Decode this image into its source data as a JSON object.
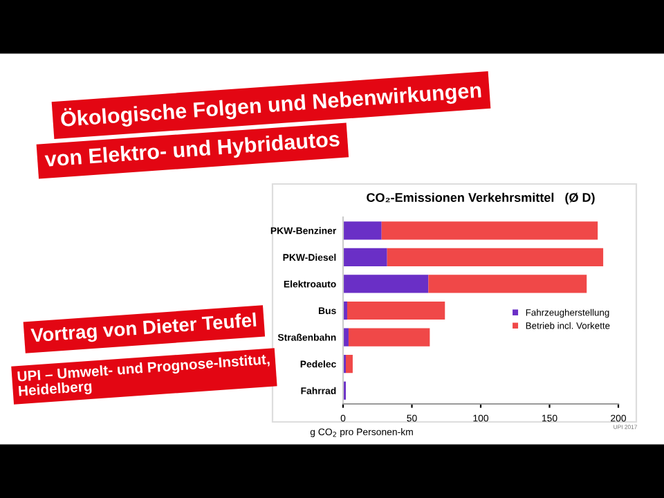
{
  "chart_data": {
    "type": "bar",
    "orientation": "horizontal",
    "stacked": true,
    "title": "CO₂-Emissionen Verkehrsmittel   (Ø D)",
    "xlabel": "g CO$_{2}$ pro Personen-km",
    "categories": [
      "PKW-Benziner",
      "PKW-Diesel",
      "Elektroauto",
      "Bus",
      "Straßenbahn",
      "Pedelec",
      "Fahrrad"
    ],
    "series": [
      {
        "name": "Fahrzeugherstellung",
        "color": "#6a2fc6",
        "values": [
          28,
          32,
          62,
          3,
          4,
          2,
          2
        ]
      },
      {
        "name": "Betrieb incl. Vorkette",
        "color": "#f04848",
        "values": [
          157,
          157,
          115,
          71,
          59,
          5,
          0
        ]
      }
    ],
    "xlim": [
      0,
      200
    ],
    "xticks": [
      0,
      50,
      100,
      150,
      200
    ],
    "legend": "right",
    "grid": false,
    "annotations": [
      "Ökologische Folgen und Nebenwirkungen",
      "von Elektro- und Hybridautos",
      "Vortrag von Dieter Teufel",
      "UPI – Umwelt- und Prognose-Institut,\nHeidelberg",
      "UPI 2017"
    ]
  }
}
